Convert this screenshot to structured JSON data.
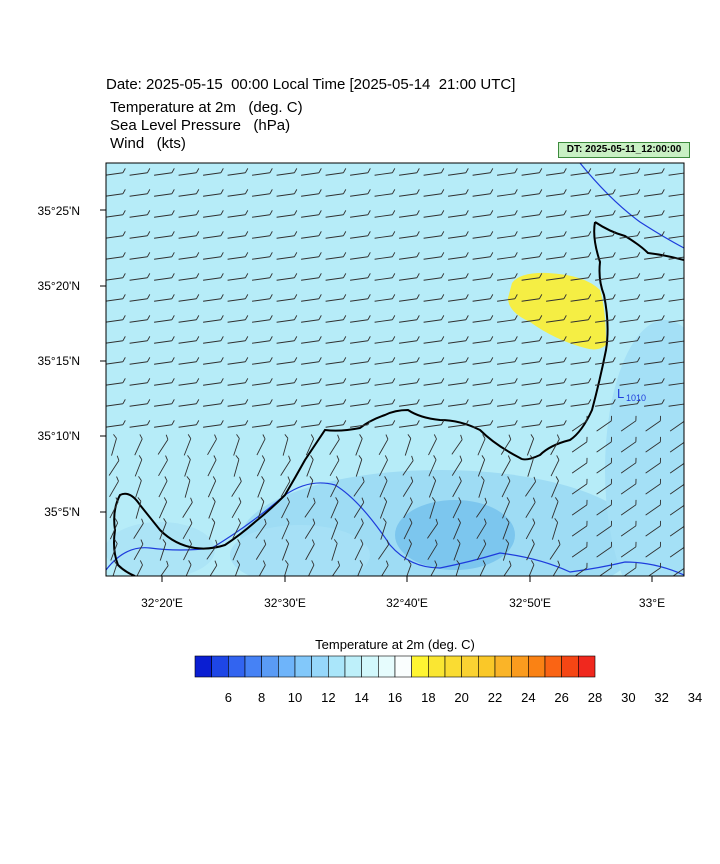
{
  "header": {
    "date_line": "Date: 2025-05-15  00:00 Local Time [2025-05-14  21:00 UTC]",
    "fields": [
      "Temperature at 2m   (deg. C)",
      "Sea Level Pressure   (hPa)",
      "Wind   (kts)"
    ]
  },
  "dt_badge": "DT: 2025-05-11_12:00:00",
  "map": {
    "lat_labels": [
      "35°25'N",
      "35°20'N",
      "35°15'N",
      "35°10'N",
      "35°5'N"
    ],
    "lon_labels": [
      "32°20'E",
      "32°30'E",
      "32°40'E",
      "32°50'E",
      "33°E"
    ],
    "pressure_low": {
      "symbol": "L",
      "value": "1010"
    },
    "colors": {
      "land_warm": "#f5ee44",
      "land_mid": "#b4ecf8",
      "sea_cool": "#97d8f2",
      "coastline": "#000000",
      "isobar": "#1e3cdc",
      "barb": "#303030",
      "low_label": "#1e3cdc"
    }
  },
  "colorbar": {
    "title": "Temperature at 2m  (deg. C)",
    "labels": [
      "6",
      "8",
      "10",
      "12",
      "14",
      "16",
      "18",
      "20",
      "22",
      "24",
      "26",
      "28",
      "30",
      "32",
      "34"
    ],
    "colors": [
      "#0a1ed2",
      "#1e46e6",
      "#3264f0",
      "#4682f5",
      "#5a9bf5",
      "#6eb4fa",
      "#82c8fa",
      "#96d7fa",
      "#aae6fa",
      "#bef0fa",
      "#d2f8fc",
      "#e6fcfd",
      "#fafefe",
      "#fff532",
      "#fae632",
      "#fadc32",
      "#fad232",
      "#fac828",
      "#fab428",
      "#fa9b1e",
      "#fa8214",
      "#fa6414",
      "#f54614",
      "#f0281e"
    ]
  }
}
